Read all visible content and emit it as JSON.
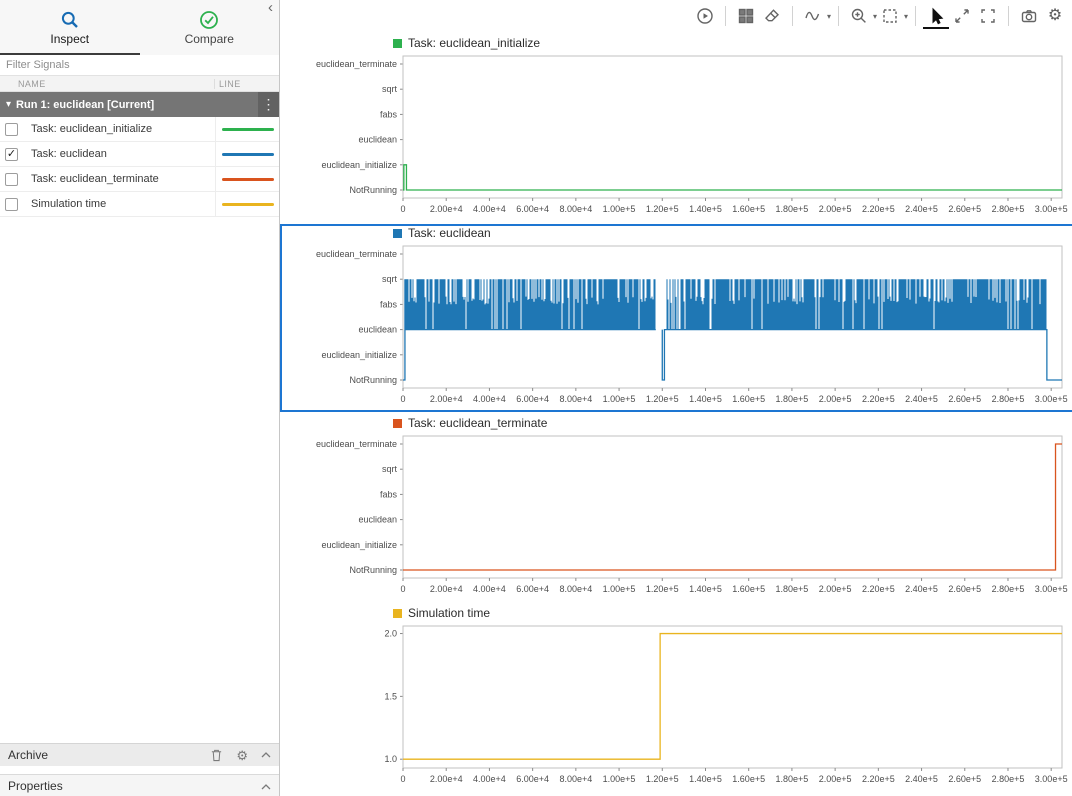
{
  "glyphs": {
    "collapse": "‹",
    "kebab": "⋮",
    "run_caret": "▾",
    "caret_down": "▾",
    "check": "✓",
    "gear": "⚙"
  },
  "sidebar": {
    "tabs": [
      {
        "label": "Inspect",
        "active": true
      },
      {
        "label": "Compare",
        "active": false
      }
    ],
    "filter_placeholder": "Filter Signals",
    "columns": {
      "name": "NAME",
      "line": "LINE"
    },
    "run_group": {
      "label": "Run 1: euclidean [Current]"
    },
    "signals": [
      {
        "label": "Task: euclidean_initialize",
        "checked": false,
        "color": "#2db14e"
      },
      {
        "label": "Task: euclidean",
        "checked": true,
        "color": "#1f77b4"
      },
      {
        "label": "Task: euclidean_terminate",
        "checked": false,
        "color": "#d9541e"
      },
      {
        "label": "Simulation time",
        "checked": false,
        "color": "#e9b41f"
      }
    ],
    "archive": {
      "label": "Archive"
    },
    "properties": {
      "label": "Properties"
    }
  },
  "toolbar": {
    "icons": [
      "record",
      "layout-grid",
      "eraser",
      "signal-style",
      "zoom",
      "zoom-region",
      "pointer",
      "expand-arrows",
      "fit-to-view",
      "snapshot",
      "settings"
    ],
    "selected": "pointer"
  },
  "chart_data": [
    {
      "id": "task-euclidean-initialize",
      "type": "line",
      "title": "Task: euclidean_initialize",
      "color": "#2db14e",
      "selected": false,
      "y_type": "category",
      "y_categories": [
        "euclidean_terminate",
        "sqrt",
        "fabs",
        "euclidean",
        "euclidean_initialize",
        "NotRunning"
      ],
      "xlim": [
        0,
        305000
      ],
      "x_ticks": [
        0,
        20000,
        40000,
        60000,
        80000,
        100000,
        120000,
        140000,
        160000,
        180000,
        200000,
        220000,
        240000,
        260000,
        280000,
        300000
      ],
      "x_tick_labels": [
        "0",
        "2.00e+4",
        "4.00e+4",
        "6.00e+4",
        "8.00e+4",
        "1.00e+5",
        "1.20e+5",
        "1.40e+5",
        "1.60e+5",
        "1.80e+5",
        "2.00e+5",
        "2.20e+5",
        "2.40e+5",
        "2.60e+5",
        "2.80e+5",
        "3.00e+5"
      ],
      "signal": {
        "kind": "steps",
        "points": [
          [
            0,
            "NotRunning"
          ],
          [
            400,
            "NotRunning"
          ],
          [
            400,
            "euclidean_initialize"
          ],
          [
            1600,
            "euclidean_initialize"
          ],
          [
            1600,
            "NotRunning"
          ],
          [
            305000,
            "NotRunning"
          ]
        ]
      }
    },
    {
      "id": "task-euclidean",
      "type": "line",
      "title": "Task: euclidean",
      "color": "#1f77b4",
      "selected": true,
      "y_type": "category",
      "y_categories": [
        "euclidean_terminate",
        "sqrt",
        "fabs",
        "euclidean",
        "euclidean_initialize",
        "NotRunning"
      ],
      "xlim": [
        0,
        305000
      ],
      "x_ticks": [
        0,
        20000,
        40000,
        60000,
        80000,
        100000,
        120000,
        140000,
        160000,
        180000,
        200000,
        220000,
        240000,
        260000,
        280000,
        300000
      ],
      "x_tick_labels": [
        "0",
        "2.00e+4",
        "4.00e+4",
        "6.00e+4",
        "8.00e+4",
        "1.00e+5",
        "1.20e+5",
        "1.40e+5",
        "1.60e+5",
        "1.80e+5",
        "2.00e+5",
        "2.20e+5",
        "2.40e+5",
        "2.60e+5",
        "2.80e+5",
        "3.00e+5"
      ],
      "signal": {
        "kind": "dense",
        "baseline": "NotRunning",
        "band_bottom": "euclidean",
        "band_mid": "fabs",
        "band_top": "sqrt",
        "start": 900,
        "end": 298000,
        "gaps": [
          [
            117000,
            121000
          ]
        ],
        "dip_x": 120000,
        "sparse": [
          [
            121000,
            128500
          ]
        ],
        "tail_end": 305000
      }
    },
    {
      "id": "task-euclidean-terminate",
      "type": "line",
      "title": "Task: euclidean_terminate",
      "color": "#d9541e",
      "selected": false,
      "y_type": "category",
      "y_categories": [
        "euclidean_terminate",
        "sqrt",
        "fabs",
        "euclidean",
        "euclidean_initialize",
        "NotRunning"
      ],
      "xlim": [
        0,
        305000
      ],
      "x_ticks": [
        0,
        20000,
        40000,
        60000,
        80000,
        100000,
        120000,
        140000,
        160000,
        180000,
        200000,
        220000,
        240000,
        260000,
        280000,
        300000
      ],
      "x_tick_labels": [
        "0",
        "2.00e+4",
        "4.00e+4",
        "6.00e+4",
        "8.00e+4",
        "1.00e+5",
        "1.20e+5",
        "1.40e+5",
        "1.60e+5",
        "1.80e+5",
        "2.00e+5",
        "2.20e+5",
        "2.40e+5",
        "2.60e+5",
        "2.80e+5",
        "3.00e+5"
      ],
      "signal": {
        "kind": "steps",
        "points": [
          [
            0,
            "NotRunning"
          ],
          [
            302000,
            "NotRunning"
          ],
          [
            302000,
            "euclidean_terminate"
          ],
          [
            305000,
            "euclidean_terminate"
          ]
        ]
      }
    },
    {
      "id": "simulation-time",
      "type": "line",
      "title": "Simulation time",
      "color": "#e9b41f",
      "selected": false,
      "y_type": "numeric",
      "ylim": [
        0.93,
        2.06
      ],
      "y_ticks": [
        1.0,
        1.5,
        2.0
      ],
      "y_tick_labels": [
        "1.0",
        "1.5",
        "2.0"
      ],
      "xlim": [
        0,
        305000
      ],
      "x_ticks": [
        0,
        20000,
        40000,
        60000,
        80000,
        100000,
        120000,
        140000,
        160000,
        180000,
        200000,
        220000,
        240000,
        260000,
        280000,
        300000
      ],
      "x_tick_labels": [
        "0",
        "2.00e+4",
        "4.00e+4",
        "6.00e+4",
        "8.00e+4",
        "1.00e+5",
        "1.20e+5",
        "1.40e+5",
        "1.60e+5",
        "1.80e+5",
        "2.00e+5",
        "2.20e+5",
        "2.40e+5",
        "2.60e+5",
        "2.80e+5",
        "3.00e+5"
      ],
      "signal": {
        "kind": "steps",
        "points": [
          [
            0,
            1.0
          ],
          [
            119000,
            1.0
          ],
          [
            119000,
            2.0
          ],
          [
            305000,
            2.0
          ]
        ]
      }
    }
  ]
}
